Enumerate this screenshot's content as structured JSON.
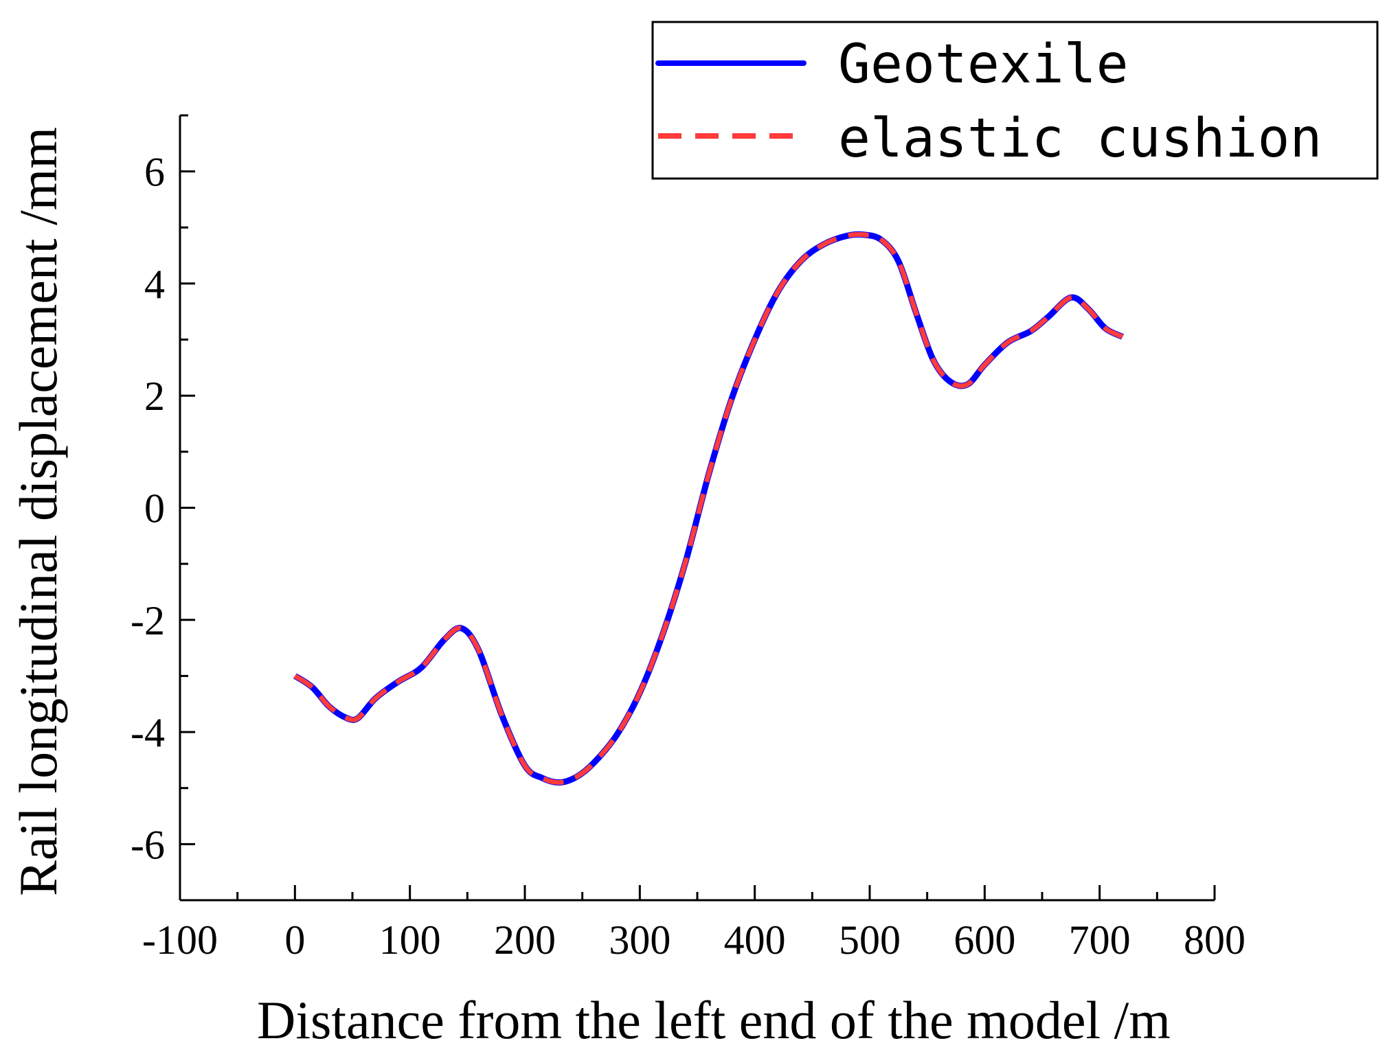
{
  "chart_data": {
    "type": "line",
    "title": "",
    "xlabel": "Distance from the left end of the model /m",
    "ylabel": "Rail longitudinal displacement /mm",
    "xlim": [
      -100,
      800
    ],
    "ylim": [
      -7,
      7
    ],
    "x_ticks": [
      "-100",
      "0",
      "100",
      "200",
      "300",
      "400",
      "500",
      "600",
      "700",
      "800"
    ],
    "y_ticks": [
      "-6",
      "-4",
      "-2",
      "0",
      "2",
      "4",
      "6"
    ],
    "grid": false,
    "legend_position": "top-right",
    "series": [
      {
        "name": "Geotexile",
        "color": "#0000ff",
        "style": "solid",
        "x": [
          0,
          15,
          30,
          45,
          55,
          70,
          90,
          110,
          130,
          145,
          160,
          180,
          200,
          215,
          230,
          245,
          260,
          280,
          300,
          320,
          340,
          360,
          380,
          400,
          420,
          440,
          460,
          480,
          495,
          510,
          525,
          540,
          555,
          570,
          585,
          600,
          620,
          640,
          655,
          675,
          690,
          705,
          720
        ],
        "y": [
          -3.0,
          -3.2,
          -3.55,
          -3.75,
          -3.75,
          -3.4,
          -3.1,
          -2.85,
          -2.35,
          -2.15,
          -2.55,
          -3.7,
          -4.6,
          -4.82,
          -4.9,
          -4.8,
          -4.55,
          -4.05,
          -3.3,
          -2.25,
          -0.95,
          0.6,
          1.95,
          3.0,
          3.85,
          4.4,
          4.7,
          4.85,
          4.87,
          4.78,
          4.4,
          3.5,
          2.65,
          2.25,
          2.2,
          2.55,
          2.95,
          3.15,
          3.4,
          3.75,
          3.55,
          3.2,
          3.05
        ]
      },
      {
        "name": "elastic cushion",
        "color": "#ff3b3b",
        "style": "dashed",
        "x": [
          0,
          15,
          30,
          45,
          55,
          70,
          90,
          110,
          130,
          145,
          160,
          180,
          200,
          215,
          230,
          245,
          260,
          280,
          300,
          320,
          340,
          360,
          380,
          400,
          420,
          440,
          460,
          480,
          495,
          510,
          525,
          540,
          555,
          570,
          585,
          600,
          620,
          640,
          655,
          675,
          690,
          705,
          720
        ],
        "y": [
          -3.0,
          -3.2,
          -3.55,
          -3.75,
          -3.75,
          -3.4,
          -3.1,
          -2.85,
          -2.35,
          -2.15,
          -2.55,
          -3.7,
          -4.6,
          -4.82,
          -4.9,
          -4.8,
          -4.55,
          -4.05,
          -3.3,
          -2.25,
          -0.95,
          0.6,
          1.95,
          3.0,
          3.85,
          4.4,
          4.7,
          4.85,
          4.87,
          4.78,
          4.4,
          3.5,
          2.65,
          2.25,
          2.2,
          2.55,
          2.95,
          3.15,
          3.4,
          3.75,
          3.55,
          3.2,
          3.05
        ]
      }
    ]
  }
}
